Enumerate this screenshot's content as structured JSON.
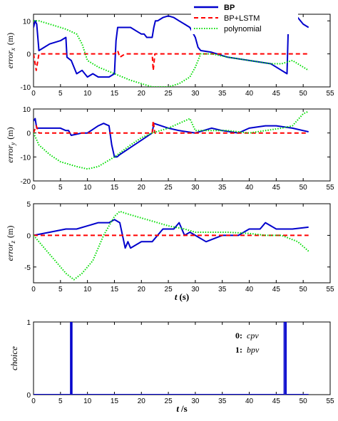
{
  "chart_data": [
    {
      "type": "line",
      "panel": "error_x",
      "ylabel_main": "error",
      "ylabel_sub": "x",
      "ylabel_unit": "(m)",
      "xlim": [
        0,
        55
      ],
      "ylim": [
        -10,
        12
      ],
      "xticks": [
        0,
        5,
        10,
        15,
        20,
        25,
        30,
        35,
        40,
        45,
        50,
        55
      ],
      "yticks": [
        -10,
        0,
        10
      ],
      "legend_position": "top-right",
      "series": [
        {
          "name": "BP",
          "color": "#0000cc",
          "style": "solid",
          "x": [
            0,
            0.3,
            0.6,
            1,
            2,
            3,
            5,
            6,
            6.2,
            7,
            7.5,
            8,
            9,
            10,
            11,
            12,
            13,
            14,
            15,
            15.3,
            15.6,
            16,
            17,
            18,
            19,
            20,
            20.5,
            21,
            22,
            22.3,
            22.6,
            23,
            24,
            25,
            26,
            27,
            28,
            29,
            30,
            30.5,
            31,
            33,
            36,
            40,
            44,
            46,
            47,
            47.3,
            48,
            49,
            50,
            51
          ],
          "y": [
            8,
            10,
            9,
            1,
            2,
            3,
            4,
            5,
            -1,
            -2,
            -4,
            -6,
            -5,
            -7,
            -6,
            -7,
            -7,
            -7,
            -6,
            4,
            8,
            8,
            8,
            8,
            7,
            6,
            6,
            5,
            5,
            8,
            10,
            10,
            11,
            11.5,
            11,
            10,
            9,
            8,
            5,
            2,
            1,
            0.5,
            -1,
            -2,
            -3,
            -5,
            -6,
            12,
            12,
            11,
            9,
            8
          ]
        },
        {
          "name": "BP+LSTM",
          "color": "#ff0000",
          "style": "dashed",
          "x": [
            0,
            0.5,
            1,
            2,
            5,
            10,
            15,
            15.6,
            16,
            17,
            18,
            20,
            22,
            22.2,
            22.5,
            23,
            25,
            30,
            32,
            35,
            40,
            45,
            47,
            48,
            50,
            51
          ],
          "y": [
            0,
            -5,
            0,
            0,
            0,
            0,
            0,
            1,
            -1,
            0,
            0,
            0,
            0,
            -5,
            0,
            0,
            0,
            0,
            0,
            0,
            0,
            0,
            0,
            0,
            0,
            0
          ]
        },
        {
          "name": "polynomial",
          "color": "#00dd00",
          "style": "dotted",
          "x": [
            0,
            1,
            2,
            4,
            6,
            8,
            9,
            10,
            12,
            15,
            18,
            20,
            22,
            25,
            27,
            29,
            30,
            31,
            33,
            36,
            40,
            44,
            46,
            48,
            50,
            51
          ],
          "y": [
            10,
            10,
            9.5,
            8.5,
            7.5,
            6,
            3,
            -2,
            -4,
            -6,
            -8,
            -9,
            -10,
            -10,
            -9,
            -7,
            -4,
            0,
            0,
            -1,
            -2,
            -3,
            -3,
            -2,
            -4,
            -5
          ]
        }
      ]
    },
    {
      "type": "line",
      "panel": "error_y",
      "ylabel_main": "error",
      "ylabel_sub": "y",
      "ylabel_unit": "(m)",
      "xlim": [
        0,
        55
      ],
      "ylim": [
        -20,
        10
      ],
      "xticks": [
        0,
        5,
        10,
        15,
        20,
        25,
        30,
        35,
        40,
        45,
        50,
        55
      ],
      "yticks": [
        -20,
        -10,
        0,
        10
      ],
      "series": [
        {
          "name": "BP",
          "color": "#0000cc",
          "style": "solid",
          "x": [
            0,
            0.3,
            0.6,
            1,
            3,
            5,
            6,
            6.5,
            7,
            9,
            10,
            12,
            13,
            14,
            14.5,
            15,
            15.5,
            16,
            18,
            20,
            22,
            22.3,
            25,
            27,
            30,
            33,
            35,
            38,
            40,
            43,
            45,
            48,
            50,
            51
          ],
          "y": [
            5,
            6,
            2,
            2,
            2,
            2,
            1,
            1,
            -1,
            0,
            0,
            3,
            4,
            3,
            -5,
            -10,
            -10,
            -9,
            -6,
            -3,
            0,
            4,
            2,
            1,
            0,
            2,
            1,
            0,
            2,
            3,
            3,
            2,
            1,
            0.5
          ]
        },
        {
          "name": "BP+LSTM",
          "color": "#ff0000",
          "style": "dashed",
          "x": [
            0,
            0.5,
            1,
            5,
            10,
            15,
            20,
            22,
            22.2,
            22.5,
            23,
            25,
            30,
            35,
            40,
            45,
            50,
            51
          ],
          "y": [
            0,
            3,
            0,
            0,
            0,
            0,
            0,
            0,
            5,
            0,
            0,
            0,
            0,
            0,
            0,
            0,
            0,
            0
          ]
        },
        {
          "name": "polynomial",
          "color": "#00dd00",
          "style": "dotted",
          "x": [
            0,
            1,
            3,
            5,
            8,
            10,
            12,
            15,
            18,
            20,
            22,
            25,
            28,
            29,
            30,
            33,
            36,
            40,
            43,
            46,
            48,
            50,
            51
          ],
          "y": [
            0,
            -5,
            -9,
            -12,
            -14,
            -15,
            -14,
            -10,
            -5,
            -2,
            0,
            2,
            5,
            6,
            1,
            1,
            1,
            0,
            1,
            2,
            3,
            8,
            9
          ]
        }
      ]
    },
    {
      "type": "line",
      "panel": "error_z",
      "ylabel_main": "error",
      "ylabel_sub": "z",
      "ylabel_unit": "(m)",
      "xlabel_main": "t",
      "xlabel_unit": "(s)",
      "xlim": [
        0,
        55
      ],
      "ylim": [
        -7.5,
        5
      ],
      "xticks": [
        0,
        5,
        10,
        15,
        20,
        25,
        30,
        35,
        40,
        45,
        50,
        55
      ],
      "yticks": [
        -5,
        0,
        5
      ],
      "series": [
        {
          "name": "BP",
          "color": "#0000cc",
          "style": "solid",
          "x": [
            0,
            3,
            6,
            8,
            10,
            12,
            14,
            15,
            16,
            17,
            17.5,
            18,
            20,
            22,
            24,
            26,
            27,
            28,
            29,
            30,
            32,
            35,
            38,
            40,
            42,
            43,
            45,
            48,
            50,
            51
          ],
          "y": [
            0,
            0.5,
            1,
            1,
            1.5,
            2,
            2,
            2.5,
            2,
            -2,
            -1,
            -2,
            -1,
            -1,
            1,
            1,
            2,
            0,
            0.5,
            0,
            -1,
            0,
            0,
            1,
            1,
            2,
            1,
            1,
            1.2,
            1.3
          ]
        },
        {
          "name": "BP+LSTM",
          "color": "#ff0000",
          "style": "dashed",
          "x": [
            0,
            2,
            5,
            8,
            10,
            12,
            14,
            16,
            18,
            20,
            22,
            25,
            28,
            30,
            32,
            35,
            38,
            40,
            45,
            50,
            51
          ],
          "y": [
            0,
            0,
            0,
            0,
            0,
            0,
            0,
            0,
            0,
            0,
            0,
            0,
            0,
            0,
            0,
            0,
            0,
            0,
            0,
            0,
            0
          ]
        },
        {
          "name": "polynomial",
          "color": "#00dd00",
          "style": "dotted",
          "x": [
            0,
            2,
            4,
            6,
            7.5,
            9,
            11,
            13,
            15,
            16,
            17,
            19,
            21,
            23,
            25,
            28,
            30,
            33,
            36,
            40,
            43,
            46,
            49,
            51
          ],
          "y": [
            0,
            -2,
            -4,
            -6,
            -7,
            -6,
            -4,
            0,
            3,
            3.8,
            3.5,
            3,
            2.5,
            2,
            1.5,
            1,
            0.5,
            0.5,
            0.5,
            0.3,
            0,
            0,
            -1,
            -2.5
          ]
        }
      ]
    },
    {
      "type": "line",
      "panel": "choice",
      "ylabel": "choice",
      "xlabel_main": "t",
      "xlabel_unit": "/s",
      "xlim": [
        0,
        55
      ],
      "ylim": [
        0,
        1
      ],
      "xticks": [
        0,
        5,
        10,
        15,
        20,
        25,
        30,
        35,
        40,
        45,
        50,
        55
      ],
      "yticks": [
        0,
        1
      ],
      "annotations": [
        {
          "key": "0:",
          "label": "cpv"
        },
        {
          "key": "1:",
          "label": "bpv"
        }
      ],
      "series": [
        {
          "name": "choice",
          "color": "#0000cc",
          "style": "solid",
          "x": [
            0,
            6.9,
            6.9,
            7.1,
            7.1,
            46.5,
            46.5,
            46.8,
            46.8,
            51
          ],
          "y": [
            0,
            0,
            1,
            1,
            0,
            0,
            1,
            1,
            0,
            0
          ]
        }
      ]
    }
  ]
}
